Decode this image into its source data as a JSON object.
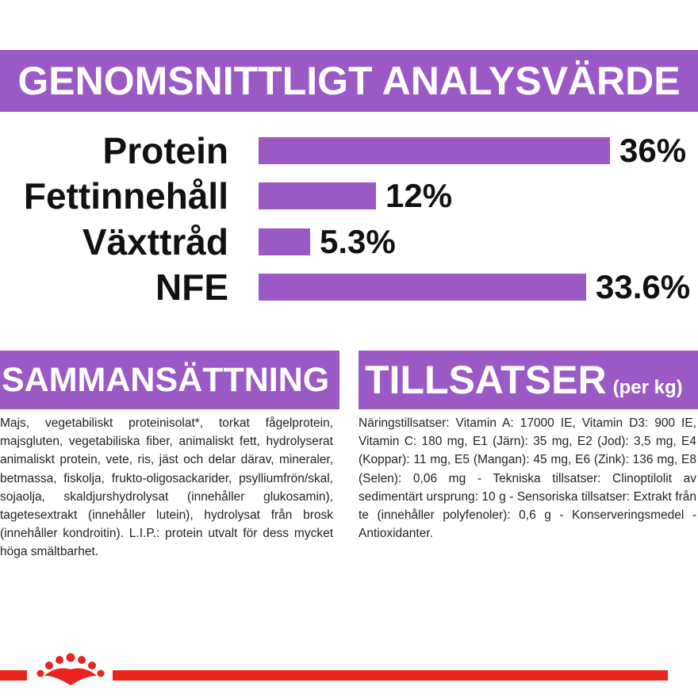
{
  "banner": {
    "title": "GENOMSNITTLIGT ANALYSVÄRDE"
  },
  "analysis": [
    {
      "label": "Protein",
      "value": "36%",
      "fraction": 0.36
    },
    {
      "label": "Fettinnehåll",
      "value": "12%",
      "fraction": 0.12
    },
    {
      "label": "Växttråd",
      "value": "5.3%",
      "fraction": 0.053
    },
    {
      "label": "NFE",
      "value": "33.6%",
      "fraction": 0.336
    }
  ],
  "composition": {
    "title": "SAMMANSÄTTNING",
    "text": "Majs, vegetabiliskt proteinisolat*, torkat fågelprotein, majsgluten, vegetabiliska fiber, animaliskt fett, hydrolyserat animaliskt protein, vete, ris, jäst och delar därav, mineraler, betmassa, fiskolja, frukto-oligosackarider, psylliumfrön/skal, sojaolja, skaldjurshydrolysat (innehåller glukosamin), tagetesextrakt (innehåller lutein), hydrolysat från brosk (innehåller kondroitin). L.I.P.: protein utvalt för dess mycket höga smältbarhet."
  },
  "additives": {
    "title": "TILLSATSER",
    "subtitle": "(per kg)",
    "text": "Näringstillsatser: Vitamin A: 17000 IE, Vitamin D3: 900 IE, Vitamin C: 180 mg, E1 (Järn): 35 mg, E2 (Jod): 3,5 mg, E4 (Koppar): 11 mg, E5 (Mangan): 45 mg, E6 (Zink): 136 mg, E8 (Selen): 0,06 mg - Tekniska tillsatser: Clinoptilolit av sedimentärt ursprung: 10 g - Sensoriska tillsatser: Extrakt från te (innehåller polyfenoler): 0,6 g - Konserveringsmedel - Antioxidanter."
  },
  "colors": {
    "accent": "#9b59c6",
    "brand_red": "#e8241d"
  },
  "icons": {
    "logo": "royal-canin-crown-logo"
  }
}
